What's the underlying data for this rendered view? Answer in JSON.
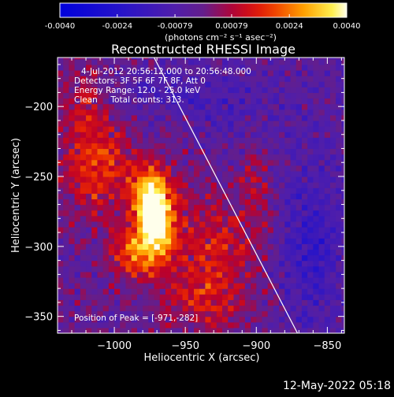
{
  "chart_data": {
    "type": "heatmap",
    "title": "Reconstructed RHESSI Image",
    "xlabel": "Heliocentric X (arcsec)",
    "ylabel": "Heliocentric Y (arcsec)",
    "xlim": [
      -1040,
      -838
    ],
    "ylim": [
      -362,
      -165
    ],
    "x_ticks": [
      -1000,
      -950,
      -900,
      -850
    ],
    "y_ticks": [
      -200,
      -250,
      -300,
      -350
    ],
    "colorbar": {
      "range": [
        -0.004,
        0.004
      ],
      "tick_values": [
        -0.004,
        -0.0024,
        -0.00079,
        0.00079,
        0.0024,
        0.004
      ],
      "tick_labels": [
        "-0.0040",
        "-0.0024",
        "-0.00079",
        "0.00079",
        "0.0024",
        "0.0040"
      ],
      "unit_label": "(photons cm⁻² s⁻¹ asec⁻²)"
    },
    "annotations": [
      "4-Jul-2012 20:56:12.000 to 20:56:48.000",
      "Detectors: 3F 5F 6F 7F 8F, Att 0",
      "Energy Range: 12.0 - 25.0 keV",
      "Clean     Total counts: 313."
    ],
    "peak_label": "Position of Peak = [-971,-282]",
    "peak": {
      "x": -971,
      "y": -282
    },
    "limb": [
      [
        -972,
        -165
      ],
      [
        -871,
        -362
      ]
    ],
    "sources": [
      {
        "x": -971,
        "y": -282,
        "sx": 10,
        "sy": 18,
        "a": 0.0042
      },
      {
        "x": -975,
        "y": -260,
        "sx": 8,
        "sy": 14,
        "a": 0.0026
      },
      {
        "x": -985,
        "y": -305,
        "sx": 14,
        "sy": 12,
        "a": 0.002
      },
      {
        "x": -1010,
        "y": -245,
        "sx": 18,
        "sy": 22,
        "a": 0.0018
      },
      {
        "x": -1020,
        "y": -200,
        "sx": 12,
        "sy": 20,
        "a": 0.0012
      },
      {
        "x": -930,
        "y": -300,
        "sx": 20,
        "sy": 30,
        "a": 0.0014
      },
      {
        "x": -900,
        "y": -260,
        "sx": 8,
        "sy": 25,
        "a": 0.0012
      },
      {
        "x": -940,
        "y": -340,
        "sx": 20,
        "sy": 15,
        "a": 0.001
      },
      {
        "x": -975,
        "y": -190,
        "sx": 25,
        "sy": 12,
        "a": -0.0008
      },
      {
        "x": -860,
        "y": -300,
        "sx": 14,
        "sy": 40,
        "a": -0.0012
      },
      {
        "x": -915,
        "y": -200,
        "sx": 20,
        "sy": 14,
        "a": -0.0005
      }
    ],
    "base_value": -0.0002,
    "noise": 0.0012,
    "grid_cell_arcsec": 4
  },
  "footer_date": "12-May-2022 05:18",
  "colors": {
    "background": "#000000",
    "text": "#ffffff",
    "limb": "#ffffff"
  }
}
